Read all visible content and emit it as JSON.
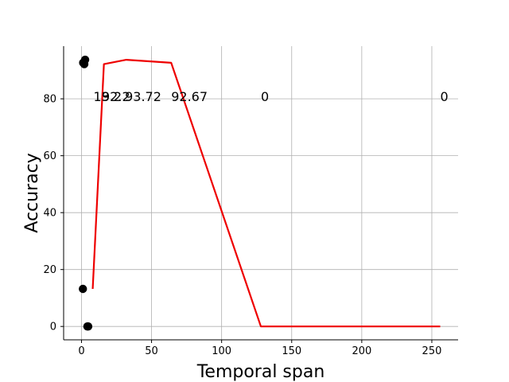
{
  "chart_data": {
    "type": "line",
    "xlabel": "Temporal span",
    "ylabel": "Accuracy",
    "xlim": [
      -12.75,
      268.75
    ],
    "ylim": [
      -4.7,
      98.5
    ],
    "xticks": [
      0,
      50,
      100,
      150,
      200,
      250
    ],
    "yticks": [
      0,
      20,
      40,
      60,
      80
    ],
    "grid": true,
    "colors": {
      "line": "#ee0000",
      "points": "#000000",
      "grid": "#b0b0b0"
    },
    "series": [
      {
        "mark": "line",
        "x": [
          8,
          16,
          32,
          64,
          128,
          256
        ],
        "y": [
          13.2,
          92.2,
          93.72,
          92.67,
          0,
          0
        ]
      },
      {
        "mark": "scatter",
        "x": [
          1,
          2,
          2.6,
          1.2,
          4.2,
          4.8
        ],
        "y": [
          13.2,
          92.2,
          93.72,
          92.67,
          0,
          0
        ]
      }
    ],
    "annotations": [
      {
        "x": 8.5,
        "y": 79.8,
        "text": "13.2"
      },
      {
        "x": 14.5,
        "y": 79.8,
        "text": "92.2"
      },
      {
        "x": 31,
        "y": 79.8,
        "text": "93.72"
      },
      {
        "x": 64,
        "y": 79.8,
        "text": "92.67"
      },
      {
        "x": 128,
        "y": 79.8,
        "text": "0"
      },
      {
        "x": 256,
        "y": 79.8,
        "text": "0"
      }
    ]
  }
}
